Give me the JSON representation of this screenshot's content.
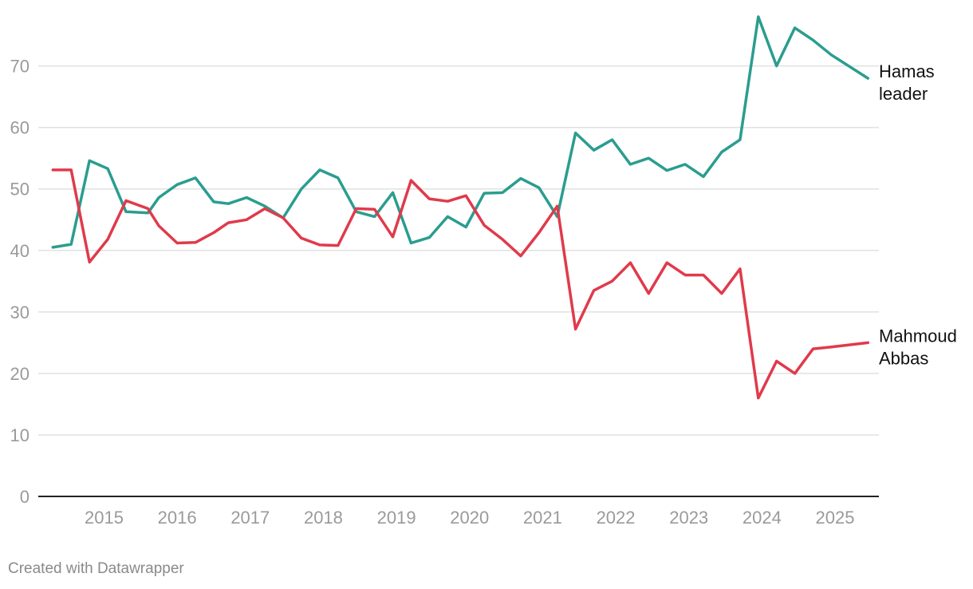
{
  "footer": {
    "credit": "Created with Datawrapper"
  },
  "chart_data": {
    "type": "line",
    "title": "",
    "xlabel": "",
    "ylabel": "",
    "xlim": [
      2014.1,
      2025.6
    ],
    "ylim": [
      0,
      78
    ],
    "y_ticks": [
      0,
      10,
      20,
      30,
      40,
      50,
      60,
      70
    ],
    "x_ticks": [
      2015,
      2016,
      2017,
      2018,
      2019,
      2020,
      2021,
      2022,
      2023,
      2024,
      2025
    ],
    "grid": true,
    "legend": "inline-right",
    "series": [
      {
        "name": "Hamas leader",
        "label_lines": [
          "Hamas",
          "leader"
        ],
        "color": "#2a9d8f",
        "x": [
          2014.3,
          2014.55,
          2014.8,
          2015.05,
          2015.3,
          2015.6,
          2015.75,
          2016.0,
          2016.25,
          2016.5,
          2016.7,
          2016.95,
          2017.2,
          2017.45,
          2017.7,
          2017.95,
          2018.2,
          2018.45,
          2018.7,
          2018.95,
          2019.2,
          2019.45,
          2019.7,
          2019.95,
          2020.2,
          2020.45,
          2020.7,
          2020.95,
          2021.2,
          2021.45,
          2021.7,
          2021.95,
          2022.2,
          2022.45,
          2022.7,
          2022.95,
          2023.2,
          2023.45,
          2023.7,
          2023.95,
          2024.2,
          2024.45,
          2024.7,
          2024.95,
          2025.45
        ],
        "y": [
          40.5,
          41.0,
          54.6,
          53.3,
          46.3,
          46.1,
          48.6,
          50.7,
          51.8,
          47.9,
          47.6,
          48.6,
          47.2,
          45.3,
          50.0,
          53.1,
          51.8,
          46.3,
          45.5,
          49.4,
          41.2,
          42.1,
          45.5,
          43.8,
          49.3,
          49.4,
          51.7,
          50.2,
          45.5,
          59.1,
          56.3,
          58.0,
          54.0,
          55.0,
          53.0,
          54.0,
          52.0,
          56.0,
          58.0,
          78.0,
          70.0,
          76.2,
          74.2,
          71.8,
          68.0
        ]
      },
      {
        "name": "Mahmoud Abbas",
        "label_lines": [
          "Mahmoud",
          "Abbas"
        ],
        "color": "#e03a4b",
        "x": [
          2014.3,
          2014.55,
          2014.8,
          2015.05,
          2015.3,
          2015.6,
          2015.75,
          2016.0,
          2016.25,
          2016.5,
          2016.7,
          2016.95,
          2017.2,
          2017.45,
          2017.7,
          2017.95,
          2018.2,
          2018.45,
          2018.7,
          2018.95,
          2019.2,
          2019.45,
          2019.7,
          2019.95,
          2020.2,
          2020.45,
          2020.7,
          2020.95,
          2021.2,
          2021.45,
          2021.7,
          2021.95,
          2022.2,
          2022.45,
          2022.7,
          2022.95,
          2023.2,
          2023.45,
          2023.7,
          2023.95,
          2024.2,
          2024.45,
          2024.7,
          2024.95,
          2025.45
        ],
        "y": [
          53.1,
          53.1,
          38.1,
          41.8,
          48.1,
          46.8,
          44.0,
          41.2,
          41.3,
          42.9,
          44.5,
          45.0,
          46.8,
          45.3,
          42.0,
          40.9,
          40.8,
          46.8,
          46.7,
          42.2,
          51.4,
          48.4,
          48.0,
          48.9,
          44.1,
          41.8,
          39.1,
          42.9,
          47.2,
          27.2,
          33.5,
          35.0,
          38.0,
          33.0,
          38.0,
          36.0,
          36.0,
          33.0,
          37.0,
          16.0,
          22.0,
          20.0,
          24.0,
          24.3,
          25.0
        ]
      }
    ]
  }
}
